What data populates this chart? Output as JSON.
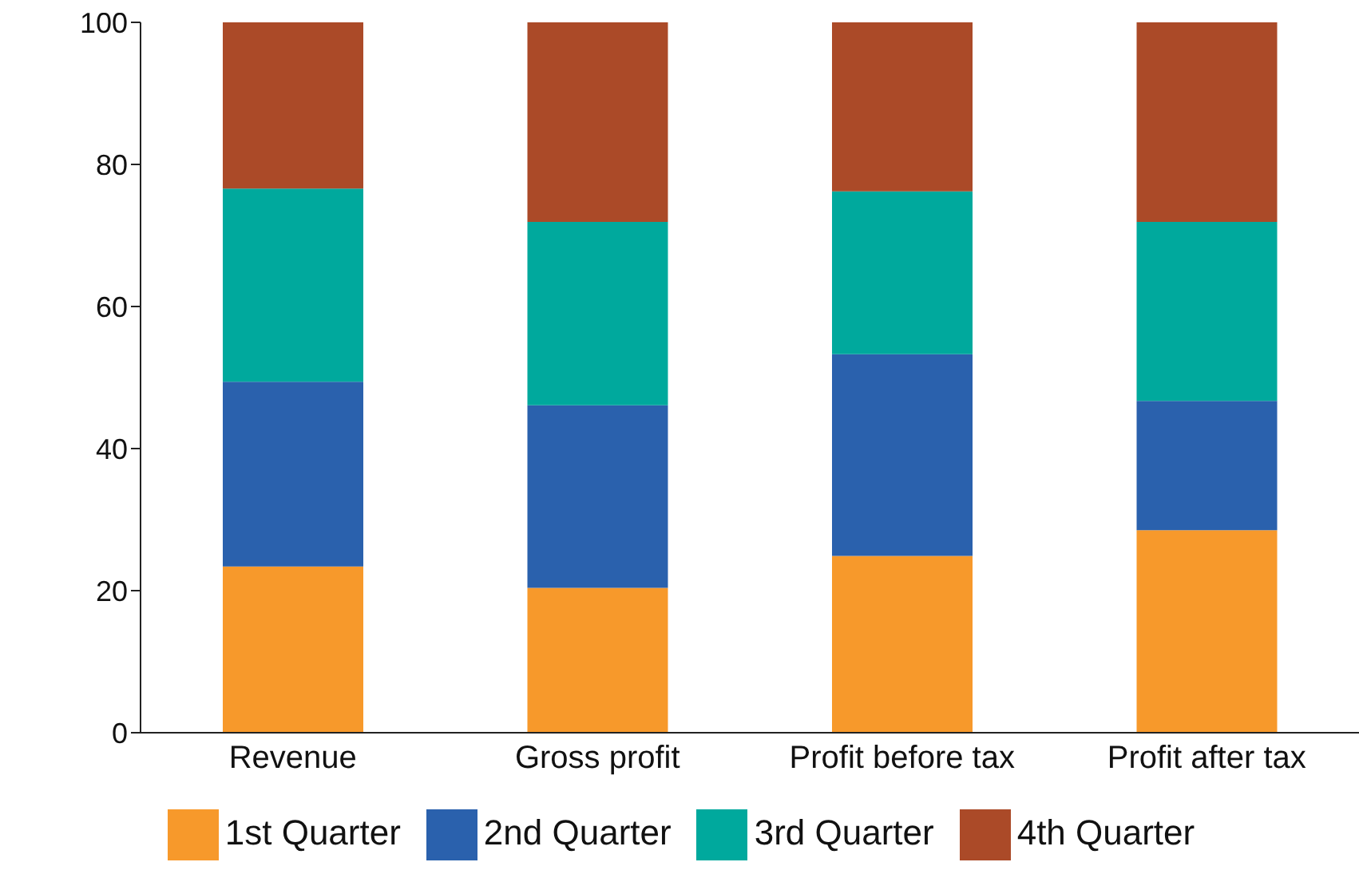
{
  "chart_data": {
    "type": "bar",
    "stacked": true,
    "categories": [
      "Revenue",
      "Gross profit",
      "Profit before tax",
      "Profit after tax"
    ],
    "series": [
      {
        "name": "1st Quarter",
        "color": "#f7992b",
        "values": [
          23.4,
          20.4,
          24.9,
          28.5
        ]
      },
      {
        "name": "2nd Quarter",
        "color": "#2a61ad",
        "values": [
          26.0,
          25.7,
          28.4,
          18.2
        ]
      },
      {
        "name": "3rd Quarter",
        "color": "#00a99d",
        "values": [
          27.2,
          25.8,
          22.9,
          25.2
        ]
      },
      {
        "name": "4th Quarter",
        "color": "#ab4a28",
        "values": [
          23.4,
          28.1,
          23.8,
          28.1
        ]
      }
    ],
    "ylim": [
      0,
      100
    ],
    "yticks": [
      0,
      20,
      40,
      60,
      80,
      100
    ],
    "grid": false,
    "legend": "bottom"
  }
}
